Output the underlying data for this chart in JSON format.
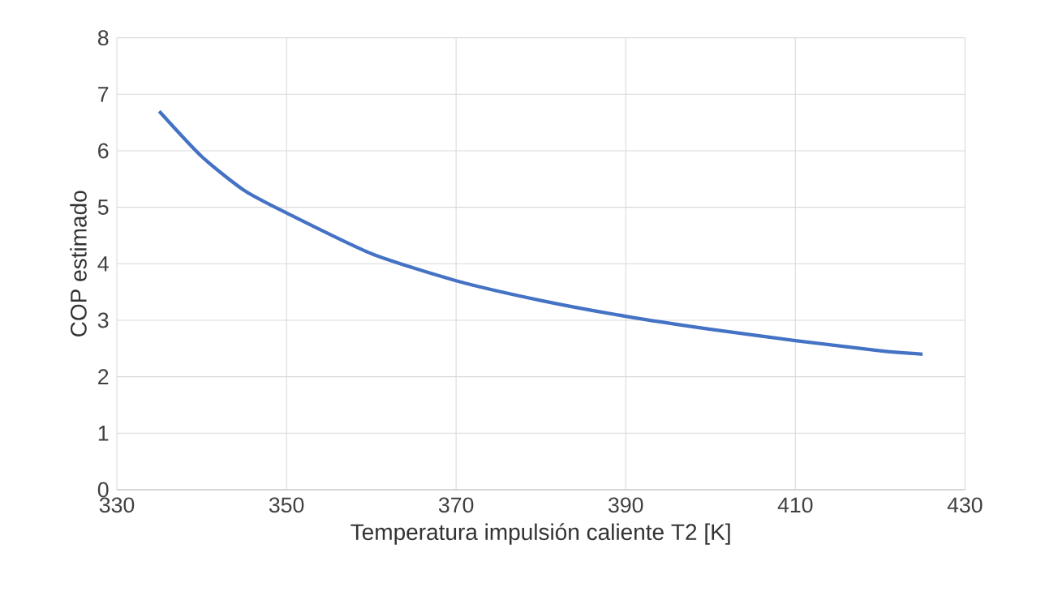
{
  "chart_data": {
    "type": "line",
    "xlabel": "Temperatura impulsión caliente T2 [K]",
    "ylabel": "COP estimado",
    "x": [
      335,
      340,
      345,
      350,
      360,
      370,
      380,
      390,
      400,
      410,
      420,
      425
    ],
    "series": [
      {
        "color": "#4472c4",
        "values": [
          6.7,
          5.9,
          5.3,
          4.9,
          4.18,
          3.7,
          3.35,
          3.07,
          2.84,
          2.64,
          2.46,
          2.4
        ]
      }
    ],
    "xlim": [
      330,
      430
    ],
    "xticks": [
      330,
      350,
      370,
      390,
      410,
      430
    ],
    "ylim": [
      0,
      8
    ],
    "yticks": [
      0,
      1,
      2,
      3,
      4,
      5,
      6,
      7,
      8
    ],
    "grid": true,
    "marker": "none",
    "line_style": "solid"
  }
}
